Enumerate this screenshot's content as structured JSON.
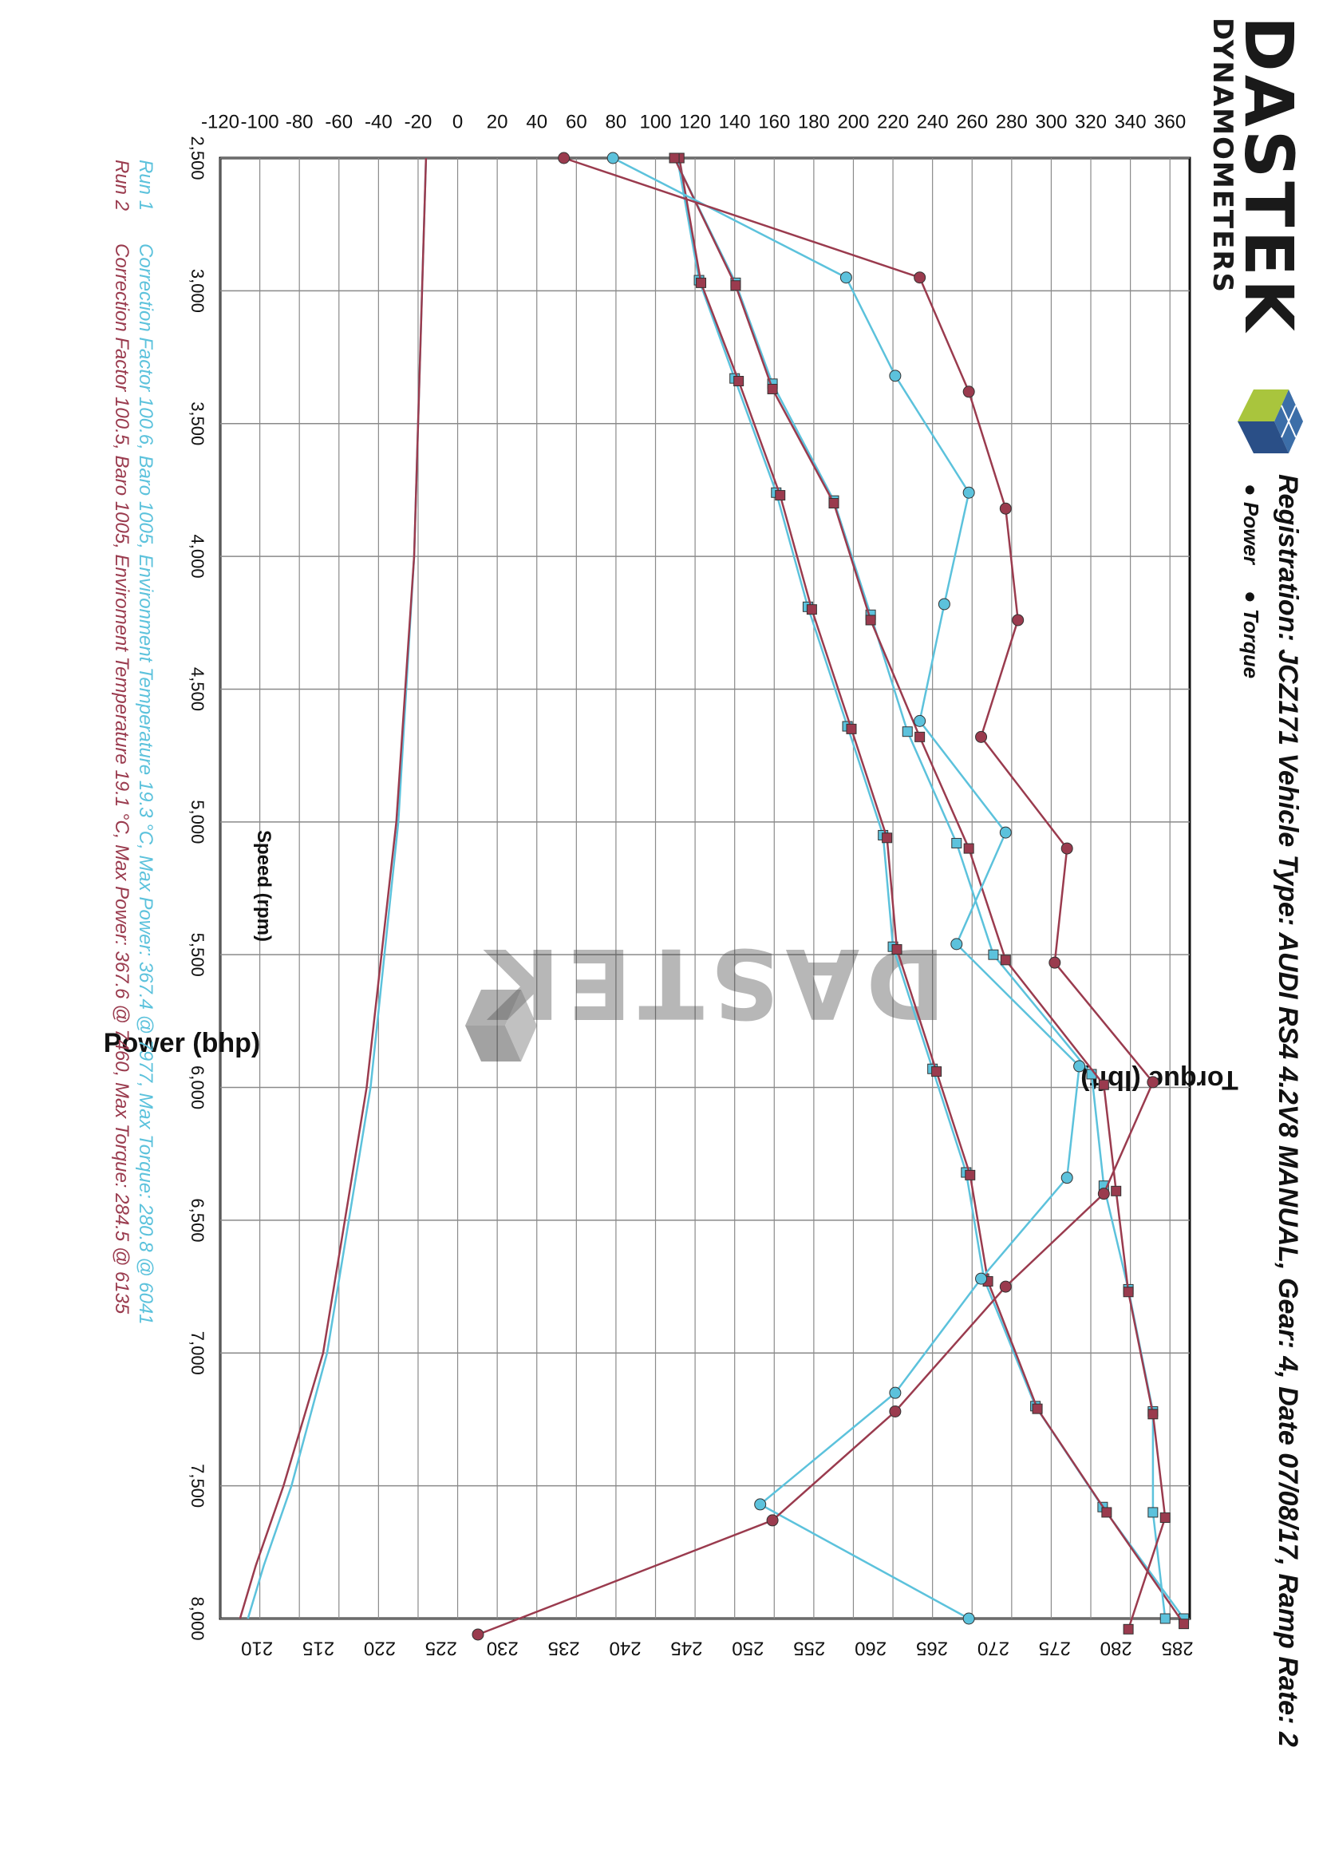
{
  "header": {
    "brand_name": "DASTEK",
    "brand_sub": "DYNAMOMETERS",
    "registration_line": "Registration: JCZ171  Vehicle Type: AUDI RS4 4.2V8 MANUAL, Gear: 4, Date 07/08/17, Ramp Rate: 2",
    "marker_power": "● Power",
    "marker_torque": "● Torque"
  },
  "watermark": "DASTEK",
  "footer": {
    "run1_label": "Run 1",
    "run1_text": "Correction Factor 100.6, Baro 1005, Environment Temperature 19.3 °C, Max Power: 367.4 @ 7977, Max Torque: 280.8 @ 6041",
    "run2_label": "Run 2",
    "run2_text": "Correction Factor 100.5, Baro 1005, Enviroment Temperature 19.1 °C, Max Power: 367.6 @ 7460, Max Torque: 284.5 @ 6135"
  },
  "colors": {
    "run1": "#5cc2dc",
    "run2": "#9a3b4e",
    "grid": "#8a8a8a",
    "axis": "#111111"
  },
  "chart_data": {
    "type": "line",
    "xlabel": "Speed (rpm)",
    "ylabel_left": "Power (bhp)",
    "ylabel_right": "Torque (lbft)",
    "xlim": [
      2500,
      8000
    ],
    "xticks": [
      "2,500",
      "3,000",
      "3,500",
      "4,000",
      "4,500",
      "5,000",
      "5,500",
      "6,000",
      "6,500",
      "7,000",
      "7,500",
      "8,000"
    ],
    "power_lim": [
      -120,
      370
    ],
    "power_ticks": [
      "-120",
      "-100",
      "-80",
      "-60",
      "-40",
      "-20",
      "0",
      "20",
      "40",
      "60",
      "80",
      "100",
      "120",
      "140",
      "160",
      "180",
      "200",
      "220",
      "240",
      "260",
      "280",
      "300",
      "320",
      "340",
      "360"
    ],
    "torque_lim": [
      207,
      286
    ],
    "torque_ticks": [
      "210",
      "215",
      "220",
      "225",
      "230",
      "235",
      "240",
      "245",
      "250",
      "255",
      "260",
      "265",
      "270",
      "275",
      "280",
      "285"
    ],
    "series": [
      {
        "name": "Run 1",
        "kind": "power",
        "color": "#5cc2dc",
        "marker": "square",
        "x": [
          2500,
          2960,
          3330,
          3760,
          4190,
          4640,
          5050,
          5470,
          5930,
          6320,
          6720,
          7200,
          7580,
          8000
        ],
        "y": [
          111,
          122,
          140,
          161,
          177,
          197,
          215,
          220,
          240,
          257,
          266,
          292,
          326,
          367
        ]
      },
      {
        "name": "Run 2",
        "kind": "power",
        "color": "#9a3b4e",
        "marker": "square",
        "x": [
          2500,
          2970,
          3340,
          3770,
          4200,
          4650,
          5060,
          5480,
          5940,
          6330,
          6730,
          7210,
          7600,
          8020
        ],
        "y": [
          112,
          123,
          142,
          163,
          179,
          199,
          217,
          222,
          242,
          259,
          268,
          293,
          328,
          367
        ]
      },
      {
        "name": "Run 1",
        "kind": "torque",
        "color": "#5cc2dc",
        "marker": "square",
        "x": [
          2500,
          2970,
          3350,
          3790,
          4220,
          4660,
          5080,
          5500,
          5950,
          6370,
          6760,
          7220,
          7600,
          8000
        ],
        "y": [
          244,
          249,
          252,
          257,
          260,
          263,
          267,
          270,
          278,
          279,
          281,
          283,
          283,
          284
        ]
      },
      {
        "name": "Run 2",
        "kind": "torque",
        "color": "#9a3b4e",
        "marker": "square",
        "x": [
          2500,
          2980,
          3370,
          3800,
          4240,
          4680,
          5100,
          5520,
          5990,
          6390,
          6770,
          7230,
          7620,
          8040
        ],
        "y": [
          244,
          249,
          252,
          257,
          260,
          264,
          268,
          271,
          279,
          280,
          281,
          283,
          284,
          281
        ]
      },
      {
        "name": "Run 1",
        "kind": "torque",
        "color": "#5cc2dc",
        "marker": "circle",
        "x": [
          2500,
          2950,
          3320,
          3760,
          4180,
          4620,
          5040,
          5460,
          5920,
          6340,
          6720,
          7150,
          7570,
          8000
        ],
        "y": [
          239,
          258,
          262,
          268,
          266,
          264,
          271,
          267,
          277,
          276,
          269,
          262,
          251,
          268
        ]
      },
      {
        "name": "Run 2",
        "kind": "torque",
        "color": "#9a3b4e",
        "marker": "circle",
        "x": [
          2500,
          2950,
          3380,
          3820,
          4240,
          4680,
          5100,
          5530,
          5980,
          6400,
          6750,
          7220,
          7630,
          8060
        ],
        "y": [
          235,
          264,
          268,
          271,
          272,
          269,
          276,
          275,
          283,
          279,
          271,
          262,
          252,
          228
        ]
      }
    ],
    "loss_series": [
      {
        "name": "Run 1",
        "kind": "power",
        "color": "#5cc2dc",
        "x": [
          2500,
          4000,
          5000,
          6000,
          7000,
          7500,
          7800,
          8000
        ],
        "y": [
          -16,
          -22,
          -30,
          -44,
          -66,
          -84,
          -98,
          -106
        ]
      },
      {
        "name": "Run 2",
        "kind": "power",
        "color": "#9a3b4e",
        "x": [
          2500,
          4000,
          5000,
          6000,
          7000,
          7500,
          7800,
          8000
        ],
        "y": [
          -16,
          -22,
          -31,
          -46,
          -68,
          -88,
          -102,
          -110
        ]
      }
    ],
    "grid": true
  }
}
